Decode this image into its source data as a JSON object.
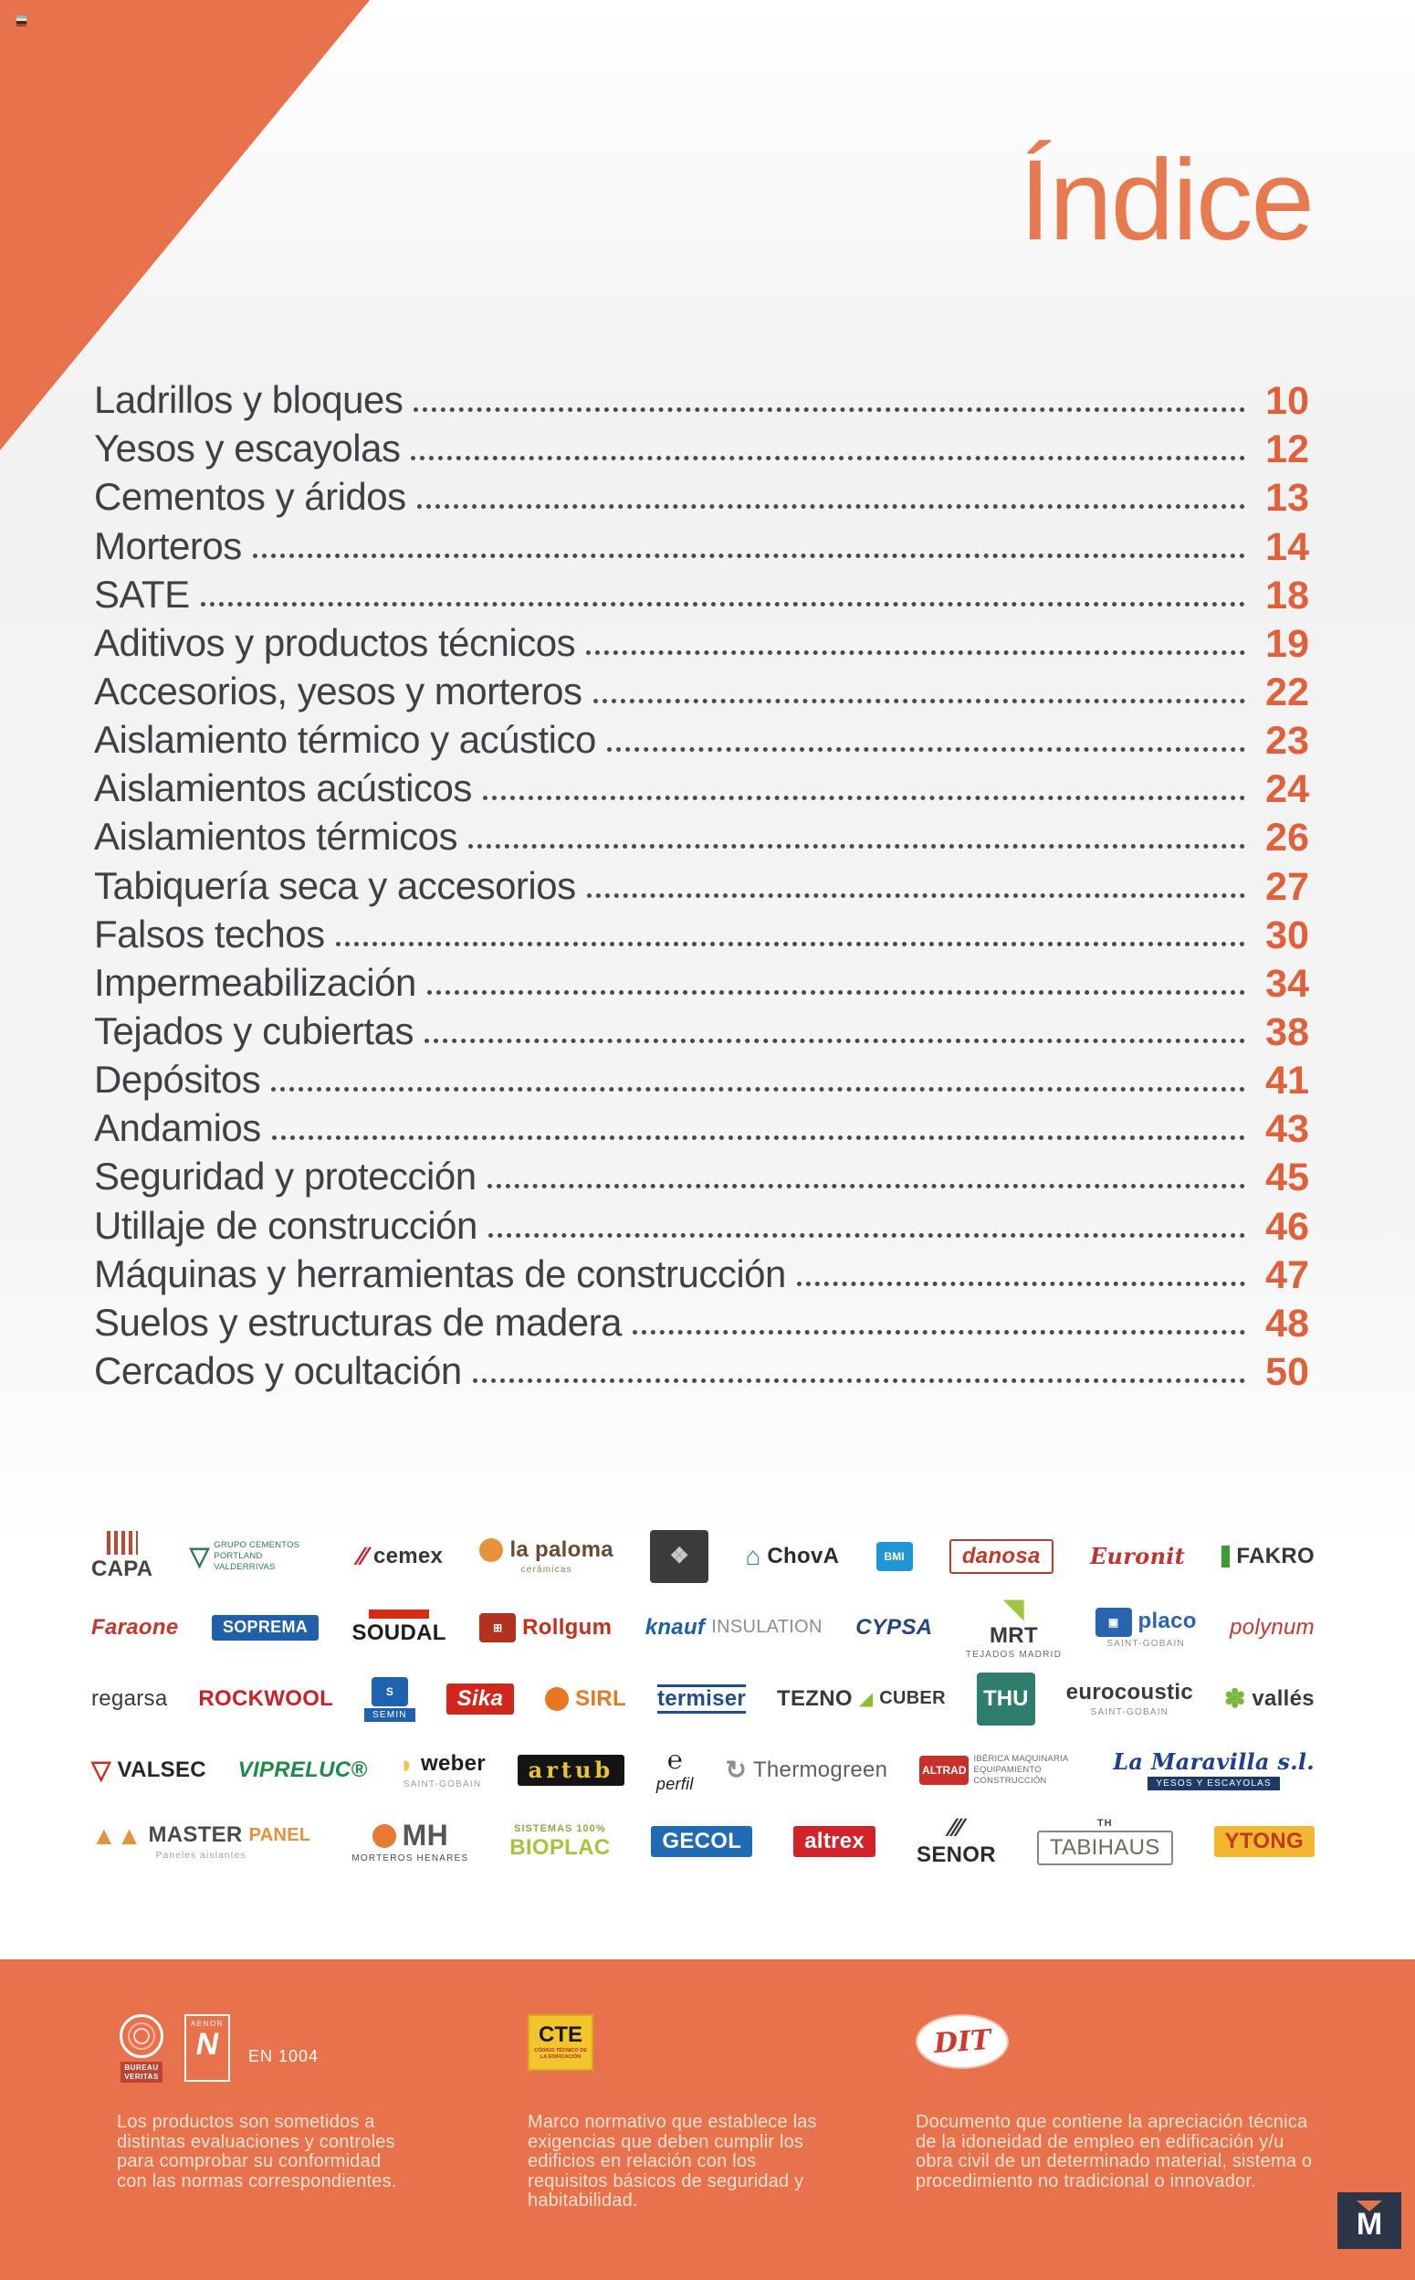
{
  "page": {
    "title": "Índice",
    "accent_color": "#e8724c",
    "number_color": "#e0603a",
    "text_color": "#3f4045"
  },
  "toc": {
    "entries": [
      {
        "label": "Ladrillos y bloques",
        "page": "10"
      },
      {
        "label": "Yesos y escayolas",
        "page": "12"
      },
      {
        "label": "Cementos y áridos",
        "page": "13"
      },
      {
        "label": "Morteros",
        "page": "14"
      },
      {
        "label": "SATE",
        "page": "18"
      },
      {
        "label": "Aditivos y productos técnicos",
        "page": "19"
      },
      {
        "label": "Accesorios, yesos y morteros",
        "page": "22"
      },
      {
        "label": "Aislamiento térmico y acústico",
        "page": "23"
      },
      {
        "label": "Aislamientos acústicos",
        "page": "24"
      },
      {
        "label": "Aislamientos térmicos",
        "page": "26"
      },
      {
        "label": "Tabiquería seca y accesorios",
        "page": "27"
      },
      {
        "label": "Falsos techos",
        "page": "30"
      },
      {
        "label": "Impermeabilización",
        "page": "34"
      },
      {
        "label": "Tejados y cubiertas",
        "page": "38"
      },
      {
        "label": "Depósitos",
        "page": "41"
      },
      {
        "label": "Andamios",
        "page": "43"
      },
      {
        "label": "Seguridad y protección",
        "page": "45"
      },
      {
        "label": "Utillaje de construcción",
        "page": "46"
      },
      {
        "label": "Máquinas y herramientas de construcción",
        "page": "47"
      },
      {
        "label": "Suelos y estructuras de madera",
        "page": "48"
      },
      {
        "label": "Cercados y ocultación",
        "page": "50"
      }
    ]
  },
  "logos": {
    "rows": [
      [
        {
          "id": "capa",
          "icon_type": "stripes",
          "icon_bg": "#c2452f",
          "stacked": true,
          "label": "CAPA",
          "label_fg": "#4a413c",
          "label_style": "b"
        },
        {
          "id": "cementos-portland-valderrivas",
          "icon_text": "▽",
          "icon_fg": "#2e7d4f",
          "label": "GRUPO CEMENTOS PORTLAND VALDERRIVAS",
          "label_fg": "#2e7d4f",
          "size": "tiny"
        },
        {
          "id": "cemex",
          "icon_text": "∕∕",
          "icon_fg": "#cc2229",
          "label": "cemex",
          "label_fg": "#31373d",
          "label_style": "b"
        },
        {
          "id": "la-paloma-ceramicas",
          "icon_type": "circle",
          "icon_bg": "#e8913c",
          "label": "la paloma",
          "label_fg": "#6b4a2f",
          "label_style": "b",
          "sub": "cerámicas",
          "sub_fg": "#9a7a55"
        },
        {
          "id": "ceramic-emblem",
          "icon_type": "square",
          "icon_bg": "#3b3b3b",
          "icon_fg": "#c8c8c8",
          "icon_text": "❖",
          "size": "sqlg"
        },
        {
          "id": "chova",
          "icon_text": "⌂",
          "icon_fg": "#2a7f9e",
          "label": "ChovA",
          "label_fg": "#2b2b2b",
          "label_style": "b"
        },
        {
          "id": "bmi",
          "icon_type": "square",
          "icon_bg": "#2196d4",
          "icon_fg": "#ffffff",
          "icon_text": "BMI"
        },
        {
          "id": "danosa",
          "label": "danosa",
          "label_fg": "#c0392b",
          "label_style": "bi",
          "label_border": "#c0392b"
        },
        {
          "id": "euronit",
          "label": "Euronit",
          "label_fg": "#c13434",
          "label_style": "scr"
        },
        {
          "id": "fakro",
          "icon_type": "bar",
          "icon_bg": "#3f9c35",
          "label": "FAKRO",
          "label_fg": "#31373d",
          "label_style": "b"
        }
      ],
      [
        {
          "id": "faraone",
          "label": "Faraone",
          "label_fg": "#c0392b",
          "label_style": "bi"
        },
        {
          "id": "soprema",
          "label": "SOPREMA",
          "label_fg": "#ffffff",
          "label_bg": "#2060a8",
          "label_style": "b",
          "size": "small"
        },
        {
          "id": "soudal",
          "icon_type": "hbar",
          "icon_bg": "#d42e12",
          "stacked": true,
          "label": "SOUDAL",
          "label_fg": "#1d1d1b",
          "label_style": "b"
        },
        {
          "id": "rollgum",
          "icon_type": "square",
          "icon_bg": "#b5311f",
          "icon_fg": "#ffffff",
          "icon_text": "⊞",
          "label": "Rollgum",
          "label_fg": "#c3301b",
          "label_style": "b"
        },
        {
          "id": "knauf-insulation",
          "label": "knauf",
          "label_fg": "#1a5fa8",
          "label_style": "bi",
          "label2": "INSULATION",
          "label2_fg": "#8a8f94"
        },
        {
          "id": "cypsa",
          "label": "CYPSA",
          "label_fg": "#24467c",
          "label_style": "bi"
        },
        {
          "id": "mrt",
          "icon_text": "◥",
          "icon_fg": "#9ec73d",
          "stacked": true,
          "label": "MRT",
          "label_fg": "#3a3a3a",
          "label_style": "b",
          "sub": "TEJADOS MADRID",
          "sub_fg": "#6a6a6a"
        },
        {
          "id": "placo",
          "icon_type": "square",
          "icon_bg": "#2a64ad",
          "icon_fg": "#ffffff",
          "icon_text": "▣",
          "label": "placo",
          "label_fg": "#2a64ad",
          "label_style": "b",
          "sub": "SAINT-GOBAIN",
          "sub_fg": "#8a8f94"
        },
        {
          "id": "polynum",
          "label": "polynum",
          "label_fg": "#c23a2e",
          "label_style": "i"
        }
      ],
      [
        {
          "id": "regarsa",
          "label": "regarsa",
          "label_fg": "#3a3a3a"
        },
        {
          "id": "rockwool",
          "label": "ROCKWOOL",
          "label_fg": "#cc2127",
          "label_style": "b"
        },
        {
          "id": "semin",
          "icon_type": "square",
          "icon_bg": "#1f63b0",
          "icon_fg": "#ffffff",
          "icon_text": "S",
          "stacked": true,
          "sub": "SEMIN",
          "sub_fg": "#ffffff",
          "sub_bg": "#1f63b0"
        },
        {
          "id": "sika",
          "label": "Sika",
          "label_fg": "#ffffff",
          "label_bg": "#d3261a",
          "label_style": "bi"
        },
        {
          "id": "sirl",
          "icon_type": "circle",
          "icon_bg": "#e87722",
          "label": "SIRL",
          "label_fg": "#e87722",
          "label_style": "b"
        },
        {
          "id": "termiser",
          "label": "termiser",
          "label_fg": "#1f4e8c",
          "label_style": "b",
          "label_border_tb": "#1f4e8c"
        },
        {
          "id": "tezno-cuber",
          "label": "TEZNO",
          "label_fg": "#3a3a3a",
          "label_style": "b",
          "mid": "◢",
          "mid_fg": "#8cbf2f",
          "label2": "CUBER",
          "label2_fg": "#3a3a3a",
          "label2_style": "b"
        },
        {
          "id": "thu",
          "icon_type": "square",
          "icon_bg": "#2f7d6d",
          "icon_fg": "#ffffff",
          "icon_text": "THU",
          "size": "sqlg"
        },
        {
          "id": "eurocoustic",
          "label": "eurocoustic",
          "label_fg": "#3a3a3a",
          "label_style": "b",
          "sub": "SAINT-GOBAIN",
          "sub_fg": "#8a8f94"
        },
        {
          "id": "valles",
          "icon_text": "✽",
          "icon_fg": "#7ab53e",
          "label": "vallés",
          "label_fg": "#3a3a3a",
          "label_style": "b"
        }
      ],
      [
        {
          "id": "valsec",
          "icon_text": "▽",
          "icon_fg": "#d22b22",
          "label": "VALSEC",
          "label_fg": "#26262b",
          "label_style": "b"
        },
        {
          "id": "vipreluc",
          "label": "VIPRELUC®",
          "label_fg": "#1e8a4c",
          "label_style": "bi"
        },
        {
          "id": "weber",
          "icon_text": "◗",
          "icon_fg": "#f6c344",
          "label": "weber",
          "label_fg": "#1d1d1b",
          "label_style": "b",
          "sub": "SAINT-GOBAIN",
          "sub_fg": "#9aa0a6"
        },
        {
          "id": "artub",
          "label": "artub",
          "label_fg": "#e8c832",
          "label_bg": "#141414",
          "label_style": "slab"
        },
        {
          "id": "e-perfil",
          "icon_text": "℮",
          "icon_fg": "#1a1a1a",
          "stacked": true,
          "label": "perfil",
          "label_fg": "#1a1a1a",
          "label_style": "i",
          "size": "small"
        },
        {
          "id": "thermogreen",
          "icon_text": "↻",
          "icon_fg": "#8a8f94",
          "label": "Thermogreen",
          "label_fg": "#5a5f63"
        },
        {
          "id": "altrad",
          "icon_type": "square",
          "icon_bg": "#c8312b",
          "icon_fg": "#ffffff",
          "icon_text": "ALTRAD",
          "label": "IBÉRICA MAQUINARIA EQUIPAMIENTO CONSTRUCCIÓN",
          "label_fg": "#6a6a6a",
          "size": "tiny"
        },
        {
          "id": "la-maravilla",
          "label": "La Maravilla s.l.",
          "label_fg": "#1d3f8f",
          "label_style": "scr",
          "sub": "YESOS Y ESCAYOLAS",
          "sub_fg": "#ffffff",
          "sub_bg": "#1d3a6b"
        }
      ],
      [
        {
          "id": "master-panel",
          "icon_text": "▲▲",
          "icon_fg": "#e8913c",
          "label": "MASTER",
          "label_fg": "#4a4a4a",
          "label_style": "b",
          "label2": "PANEL",
          "label2_fg": "#e8913c",
          "label2_style": "b",
          "sub": "Paneles aislantes",
          "sub_fg": "#9aa0a6"
        },
        {
          "id": "morteros-henares",
          "icon_type": "circle",
          "icon_bg": "#e87a33",
          "label": "MH",
          "label_fg": "#55565a",
          "label_style": "b",
          "size": "lg",
          "sub": "MORTEROS HENARES",
          "sub_fg": "#4a4a4a"
        },
        {
          "id": "bioplac",
          "top": "SISTEMAS 100%",
          "top_fg": "#9aa43c",
          "label": "BIOPLAC",
          "label_fg": "#a9c23d",
          "label_style": "b"
        },
        {
          "id": "gecol",
          "label": "GECOL",
          "label_fg": "#ffffff",
          "label_bg": "#1f6cb5",
          "label_style": "b"
        },
        {
          "id": "altrex",
          "label": "altrex",
          "label_fg": "#ffffff",
          "label_bg": "#d2232a",
          "label_style": "b"
        },
        {
          "id": "senor",
          "icon_text": "∕∕∕",
          "icon_fg": "#3a3a3a",
          "stacked": true,
          "label": "SENOR",
          "label_fg": "#2b2b2b",
          "label_style": "b"
        },
        {
          "id": "tabihaus",
          "top": "TH",
          "top_fg": "#4a4a4a",
          "label": "TABIHAUS",
          "label_fg": "#6b6b5f",
          "label_border": "#8a8a7a"
        },
        {
          "id": "ytong",
          "label": "YTONG",
          "label_fg": "#bf3a1e",
          "label_bg": "#f2b72e",
          "label_style": "b"
        }
      ]
    ]
  },
  "footer": {
    "cards": [
      {
        "badge1_lines": [
          "BUREAU",
          "VERITAS"
        ],
        "badge2_label": "AENOR",
        "badge2_mark": "N",
        "label": "EN 1004",
        "text": "Los productos son sometidos a distintas evaluaciones y controles para comprobar su conformidad con las normas correspondientes."
      },
      {
        "logo_text": "CTE",
        "logo_sub": "CÓDIGO TÉCNICO DE LA EDIFICACIÓN",
        "text": "Marco normativo que establece las exigencias que deben cumplir los edificios en relación con los requisitos básicos de seguridad y habitabilidad."
      },
      {
        "logo_text": "DIT",
        "text": "Documento que contiene la apreciación técnica de la idoneidad de empleo en edificación y/u obra civil de un determinado material, sistema o procedimiento no tradicional o innovador."
      }
    ],
    "mark_letter": "M"
  }
}
